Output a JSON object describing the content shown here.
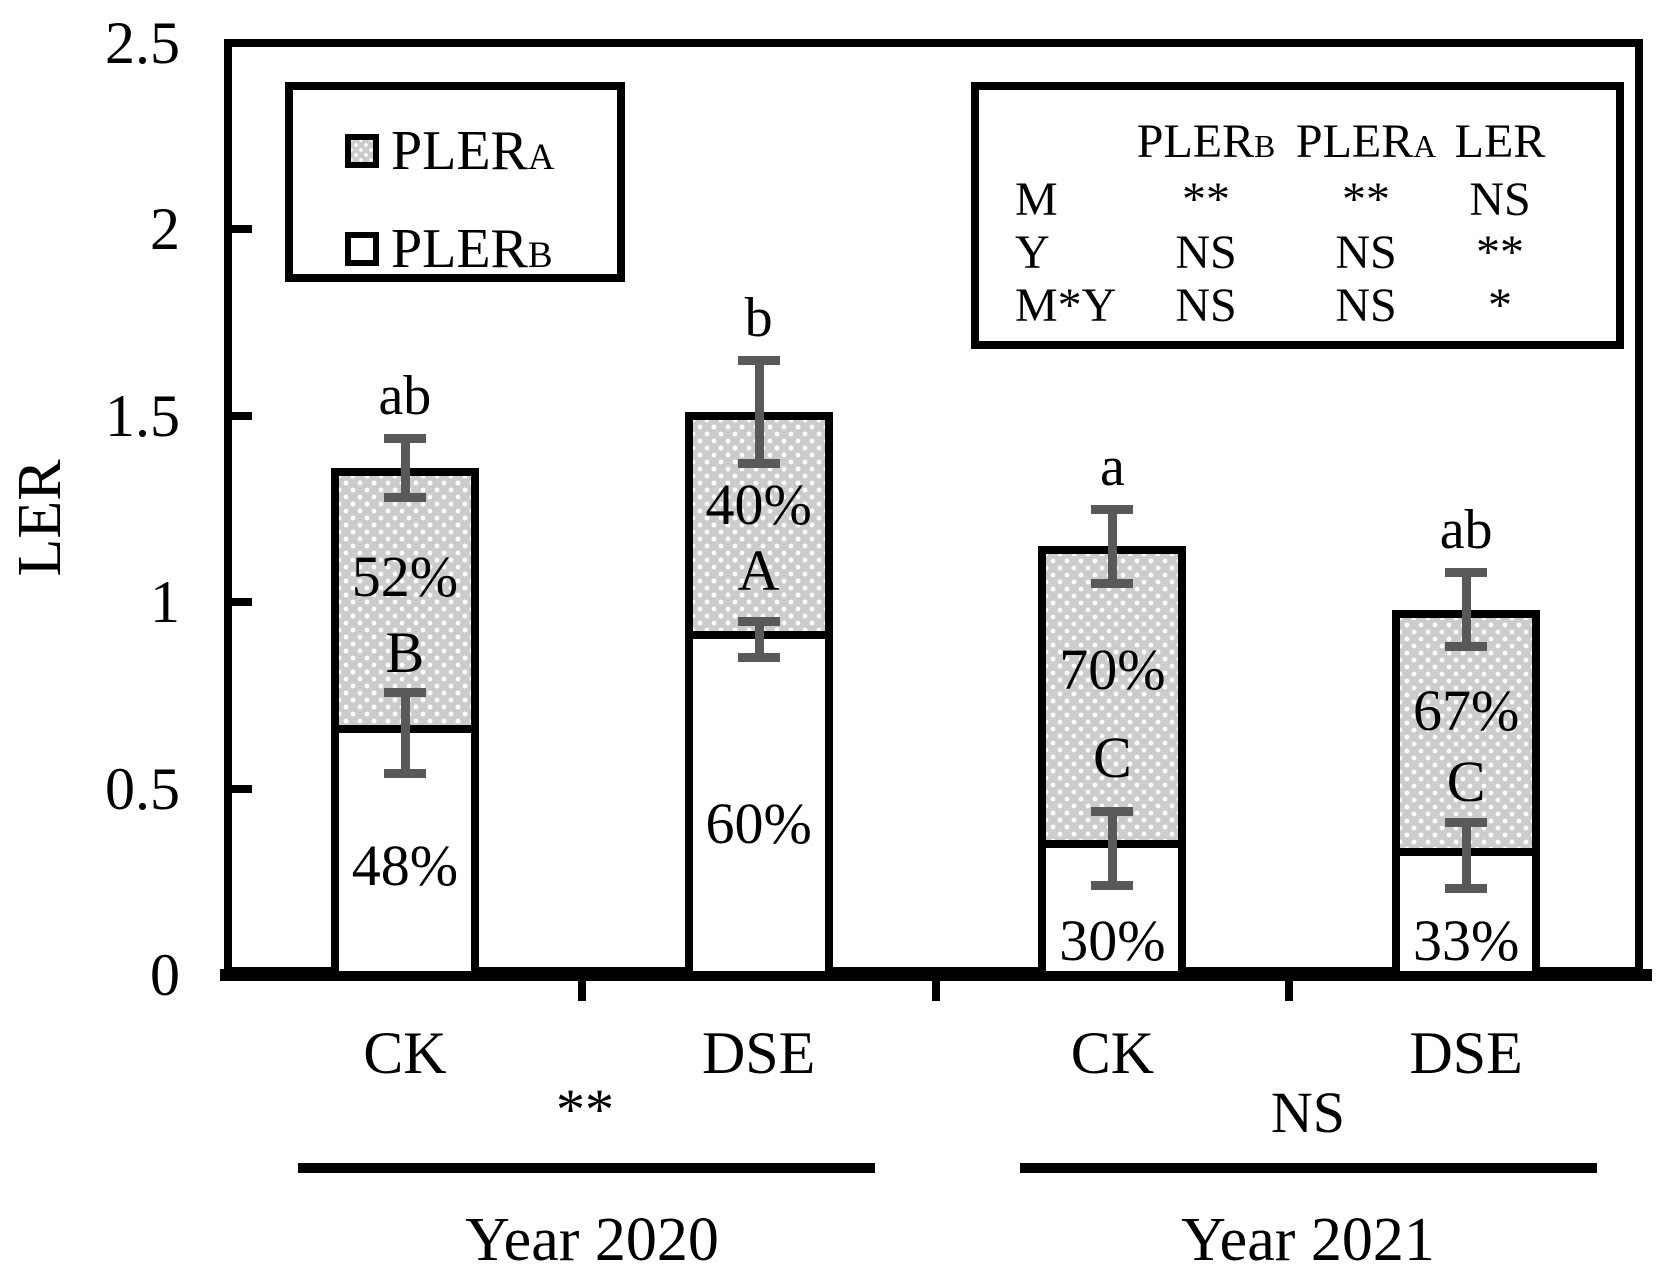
{
  "figure": {
    "y_axis": {
      "label": "LER",
      "ticks": [
        {
          "value": 2.5,
          "label": "2.5"
        },
        {
          "value": 2.0,
          "label": "2"
        },
        {
          "value": 1.5,
          "label": "1.5"
        },
        {
          "value": 1.0,
          "label": "1"
        },
        {
          "value": 0.5,
          "label": "0.5"
        },
        {
          "value": 0.0,
          "label": "0"
        }
      ]
    },
    "legend": {
      "items": [
        {
          "name": "PLER",
          "sub": "A",
          "swatch": "dotted-gray"
        },
        {
          "name": "PLER",
          "sub": "B",
          "swatch": "white"
        }
      ]
    },
    "anova_table": {
      "columns": [
        {
          "name": "PLER",
          "sub": "B"
        },
        {
          "name": "PLER",
          "sub": "A"
        },
        {
          "name": "LER",
          "sub": ""
        }
      ],
      "rows": [
        {
          "label": "M",
          "cells": [
            "**",
            "**",
            "NS"
          ]
        },
        {
          "label": "Y",
          "cells": [
            "NS",
            "NS",
            "**"
          ]
        },
        {
          "label": "M*Y",
          "cells": [
            "NS",
            "NS",
            "*"
          ]
        }
      ]
    },
    "groups": [
      {
        "label": "Year 2020",
        "significance": "**"
      },
      {
        "label": "Year 2021",
        "significance": "NS"
      }
    ]
  },
  "chart_data": {
    "type": "bar",
    "stacked": true,
    "ylabel": "LER",
    "ylim": [
      0,
      2.5
    ],
    "grid": false,
    "categories": [
      "CK",
      "DSE",
      "CK",
      "DSE"
    ],
    "category_groups": [
      "Year 2020",
      "Year 2020",
      "Year 2021",
      "Year 2021"
    ],
    "series": [
      {
        "name": "PLERB",
        "fill": "white",
        "values": [
          0.65,
          0.9,
          0.34,
          0.32
        ],
        "percent_labels": [
          "48%",
          "60%",
          "30%",
          "33%"
        ]
      },
      {
        "name": "PLERA",
        "fill": "dotted-gray",
        "values": [
          0.71,
          0.61,
          0.81,
          0.66
        ],
        "percent_labels": [
          "52%",
          "40%",
          "70%",
          "67%"
        ],
        "tukey_letters": [
          "B",
          "A",
          "C",
          "C"
        ]
      }
    ],
    "totals": [
      1.36,
      1.51,
      1.15,
      0.98
    ],
    "total_sig_letters": [
      "ab",
      "b",
      "a",
      "ab"
    ],
    "total_error_bars": {
      "low": [
        1.28,
        1.37,
        1.05,
        0.88
      ],
      "high": [
        1.44,
        1.65,
        1.25,
        1.08
      ]
    },
    "plerb_error_bars": {
      "low": [
        0.54,
        0.85,
        0.24,
        0.23
      ],
      "high": [
        0.76,
        0.95,
        0.44,
        0.41
      ]
    }
  },
  "colors": {
    "bar_gray_fill": "#cccccc",
    "bar_dot": "#ffffff",
    "bar_border": "#000000",
    "error_bar": "#595959",
    "text": "#000000",
    "background": "#ffffff"
  }
}
